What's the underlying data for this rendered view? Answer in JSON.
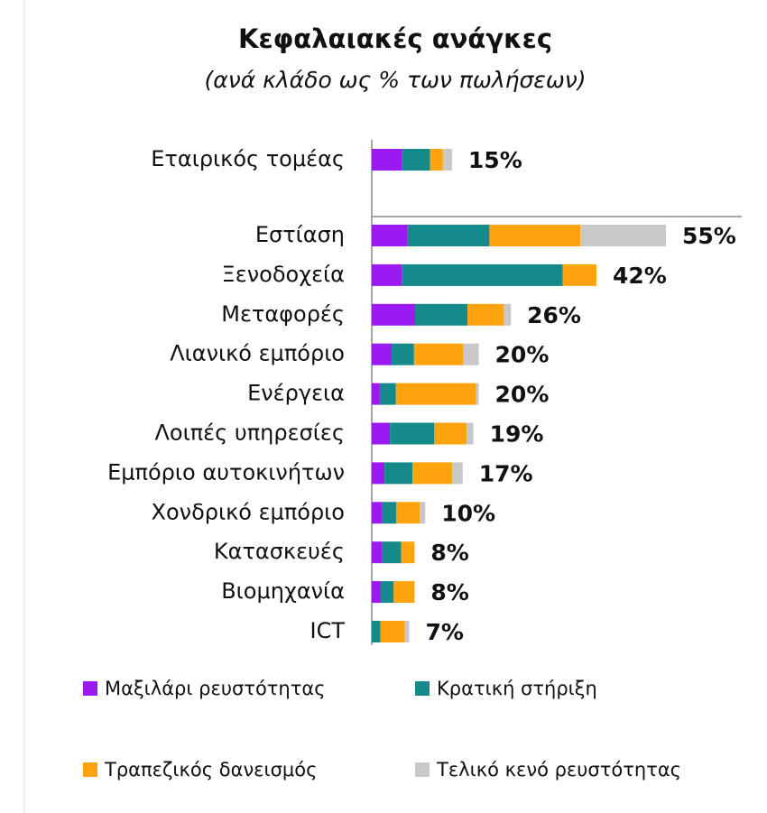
{
  "chart_data": {
    "type": "stacked-barh",
    "title": "Κεφαλαιακές ανάγκες",
    "subtitle": "(ανά κλάδο ως % των πωλήσεων)",
    "categories": [
      "Εταιρικός τομέας",
      "Εστίαση",
      "Ξενοδοχεία",
      "Μεταφορές",
      "Λιανικό εμπόριο",
      "Ενέργεια",
      "Λοιπές υπηρεσίες",
      "Εμπόριο αυτοκινήτων",
      "Χονδρικό εμπόριο",
      "Κατασκευές",
      "Βιομηχανία",
      "ICT"
    ],
    "series": [
      {
        "name": "Μαξιλάρι ρευστότητας",
        "color": "#9b1af2",
        "values": [
          5.7,
          6.7,
          5.6,
          8.1,
          3.7,
          1.5,
          3.4,
          2.4,
          2.0,
          2.0,
          1.7,
          0
        ]
      },
      {
        "name": "Κρατική στήριξη",
        "color": "#148a8a",
        "values": [
          5.2,
          15.3,
          30.1,
          9.8,
          4.2,
          3.0,
          8.3,
          5.2,
          2.6,
          3.5,
          2.4,
          1.6
        ]
      },
      {
        "name": "Τραπεζικός δανεισμός",
        "color": "#ffa30f",
        "values": [
          2.4,
          17,
          6.3,
          6.8,
          9.2,
          15.0,
          6.0,
          7.4,
          4.4,
          2.5,
          3.9,
          4.6
        ]
      },
      {
        "name": "Τελικό κενό ρευστότητας",
        "color": "#c8c8c8",
        "values": [
          1.7,
          16,
          0,
          1.3,
          2.9,
          0.5,
          1.3,
          2.0,
          1.0,
          0,
          0,
          0.8
        ]
      }
    ],
    "totals": {
      "values": [
        15,
        55,
        42,
        26,
        20,
        20,
        19,
        17,
        10,
        8,
        8,
        7
      ],
      "value_labels": [
        "15%",
        "55%",
        "42%",
        "26%",
        "20%",
        "20%",
        "19%",
        "17%",
        "10%",
        "8%",
        "8%",
        "7%"
      ]
    }
  }
}
